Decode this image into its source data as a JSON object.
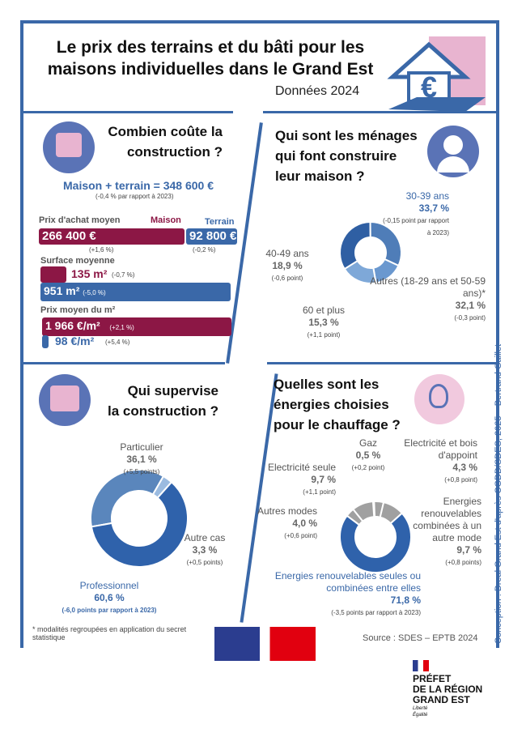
{
  "header": {
    "title": "Le prix des terrains et du bâti pour les maisons individuelles dans le Grand Est",
    "subtitle": "Données 2024"
  },
  "cost": {
    "title1": "Combien coûte la",
    "title2": "construction ?",
    "total": "Maison + terrain = 348 600 €",
    "total_change": "(-0,4 % par rapport à 2023)",
    "price_label": "Prix d'achat moyen",
    "maison_label": "Maison",
    "terrain_label": "Terrain",
    "maison_price": "266 400 €",
    "maison_price_change": "(+1,6 %)",
    "terrain_price": "92 800 €",
    "terrain_price_change": "(-0,2 %)",
    "surface_label": "Surface moyenne",
    "maison_surface": "135 m²",
    "maison_surface_change": "(-0,7 %)",
    "terrain_surface": "951 m²",
    "terrain_surface_change": "(-5,0 %)",
    "m2_label": "Prix moyen du m²",
    "maison_m2": "1 966 €/m²",
    "maison_m2_change": "(+2,1 %)",
    "terrain_m2": "98 €/m²",
    "terrain_m2_change": "(+5,4 %)"
  },
  "menages": {
    "title": [
      "Qui sont les ménages",
      "qui font construire",
      "leur maison ?"
    ]
  },
  "supervision": {
    "title": [
      "Qui supervise",
      "la construction ?"
    ]
  },
  "energie": {
    "title": [
      "Quelles sont les",
      "énergies choisies",
      "pour le chauffage ?"
    ]
  },
  "footnote": "* modalités regroupées en application du secret statistique",
  "source": "Source : SDES – EPTB 2024",
  "credit": "Conception : Dreal Grand Est d'après CGDD/SDES, 2025 – Bertrand Gaillet",
  "prefet": {
    "line1": "PRÉFET",
    "line2": "DE LA RÉGION",
    "line3": "GRAND EST",
    "motto1": "Liberté",
    "motto2": "Égalité"
  },
  "colors": {
    "blue": "#3a68a8",
    "maroon": "#8c1745",
    "pink": "#e8b4d0",
    "grey": "#a0a0a0"
  },
  "chart_data": [
    {
      "type": "pie",
      "donut": true,
      "title": "Qui sont les ménages qui font construire leur maison ?",
      "slices": [
        {
          "label": "30-39 ans",
          "value": 33.7,
          "change": "(-0,15 point par rapport à 2023)",
          "color": "#2f5fa3"
        },
        {
          "label": "Autres (18-29 ans et 50-59 ans)*",
          "value": 32.1,
          "change": "(-0,3 point)",
          "color": "#4f7db8"
        },
        {
          "label": "60 et plus",
          "value": 15.3,
          "change": "(+1,1 point)",
          "color": "#6a98cf"
        },
        {
          "label": "40-49 ans",
          "value": 18.9,
          "change": "(-0,6 point)",
          "color": "#7ea8d8"
        }
      ]
    },
    {
      "type": "pie",
      "donut": true,
      "title": "Qui supervise la construction ?",
      "slices": [
        {
          "label": "Particulier",
          "value": 36.1,
          "change": "(+5,5 points)",
          "color": "#5a86bc"
        },
        {
          "label": "Autre cas",
          "value": 3.3,
          "change": "(+0,5 points)",
          "color": "#9bbbe0"
        },
        {
          "label": "Professionnel",
          "value": 60.6,
          "change": "(-6,0 points par rapport à 2023)",
          "color": "#2f62ab"
        }
      ]
    },
    {
      "type": "pie",
      "donut": true,
      "title": "Quelles sont les énergies choisies pour le chauffage ?",
      "slices": [
        {
          "label": "Gaz",
          "value": 0.5,
          "change": "(+0,2 point)",
          "color": "#a0a0a0"
        },
        {
          "label": "Electricité et bois d'appoint",
          "value": 4.3,
          "change": "(+0,8 point)",
          "color": "#a0a0a0"
        },
        {
          "label": "Energies renouvelables combinées à un autre mode",
          "value": 9.7,
          "change": "(+0,8 points)",
          "color": "#a0a0a0"
        },
        {
          "label": "Energies renouvelables seules ou combinées entre elles",
          "value": 71.8,
          "change": "(-3,5 points par rapport à 2023)",
          "color": "#2f62ab"
        },
        {
          "label": "Autres modes",
          "value": 4.0,
          "change": "(+0,6 point)",
          "color": "#a0a0a0"
        },
        {
          "label": "Electricité seule",
          "value": 9.7,
          "change": "(+1,1 point)",
          "color": "#a0a0a0"
        }
      ]
    }
  ]
}
